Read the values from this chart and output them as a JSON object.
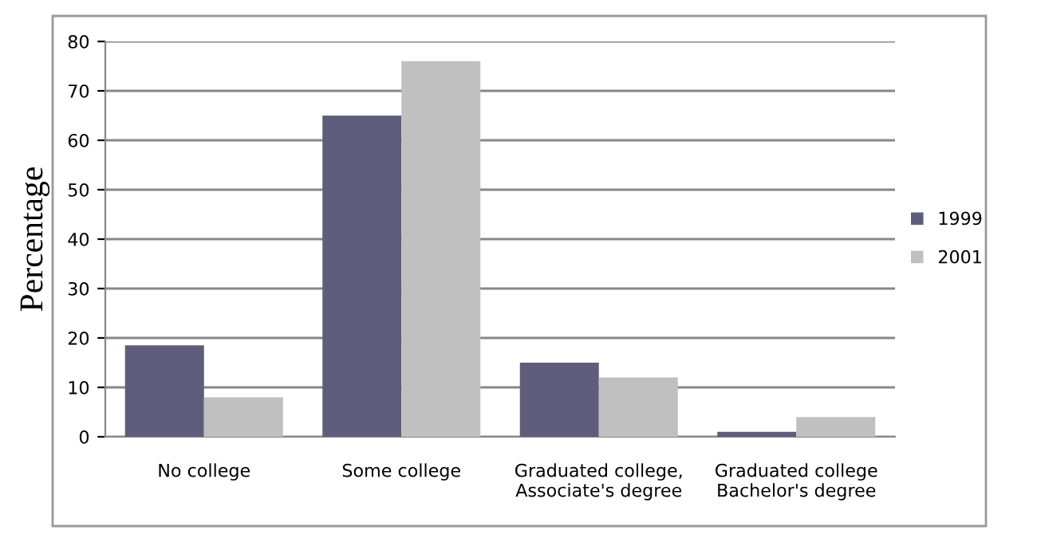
{
  "chart_data": {
    "type": "bar",
    "ylabel": "Percentage",
    "categories": [
      "No college",
      "Some college",
      "Graduated college,\nAssociate's degree",
      "Graduated college\nBachelor's degree"
    ],
    "series": [
      {
        "name": "1999",
        "color": "#5e5e7c",
        "values": [
          18.5,
          65,
          15,
          1
        ]
      },
      {
        "name": "2001",
        "color": "#c0c0c0",
        "values": [
          8,
          76,
          12,
          4
        ]
      }
    ],
    "ylim": [
      0,
      80
    ],
    "yticks": [
      0,
      10,
      20,
      30,
      40,
      50,
      60,
      70,
      80
    ],
    "grid": "y",
    "legend": "right"
  }
}
